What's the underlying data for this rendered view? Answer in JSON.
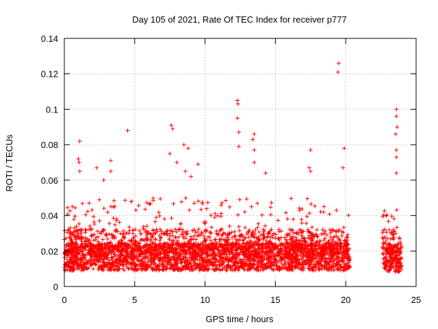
{
  "chart_data": {
    "type": "scatter",
    "title": "Day 105 of 2021, Rate Of TEC Index for receiver p777",
    "xlabel": "GPS time / hours",
    "ylabel": "ROTI / TECUs",
    "xlim": [
      0,
      25
    ],
    "ylim": [
      0,
      0.14
    ],
    "x_ticks": [
      0,
      5,
      10,
      15,
      20,
      25
    ],
    "y_ticks": [
      0,
      0.02,
      0.04,
      0.06,
      0.08,
      0.1,
      0.12,
      0.14
    ],
    "x_tick_labels": [
      "0",
      "5",
      "10",
      "15",
      "20",
      "25"
    ],
    "y_tick_labels": [
      "0",
      "0.02",
      "0.04",
      "0.06",
      "0.08",
      "0.1",
      "0.12",
      "0.14"
    ],
    "grid": true,
    "marker": "+",
    "color": "#ff0000",
    "series": [
      {
        "data_segments": [
          {
            "x_start": 0.0,
            "x_end": 20.3,
            "y_low": 0.005,
            "y_typical": 0.018,
            "y_high": 0.05
          },
          {
            "x_start": 22.6,
            "x_end": 24.0,
            "y_low": 0.004,
            "y_typical": 0.018,
            "y_high": 0.045
          }
        ],
        "outliers": [
          {
            "x": 1.1,
            "y": 0.082
          },
          {
            "x": 1.0,
            "y": 0.072
          },
          {
            "x": 1.05,
            "y": 0.07
          },
          {
            "x": 1.1,
            "y": 0.065
          },
          {
            "x": 2.3,
            "y": 0.067
          },
          {
            "x": 2.8,
            "y": 0.06
          },
          {
            "x": 3.3,
            "y": 0.071
          },
          {
            "x": 3.3,
            "y": 0.065
          },
          {
            "x": 4.5,
            "y": 0.088
          },
          {
            "x": 7.6,
            "y": 0.091
          },
          {
            "x": 7.7,
            "y": 0.089
          },
          {
            "x": 7.5,
            "y": 0.075
          },
          {
            "x": 8.0,
            "y": 0.07
          },
          {
            "x": 8.5,
            "y": 0.08
          },
          {
            "x": 8.8,
            "y": 0.078
          },
          {
            "x": 8.6,
            "y": 0.065
          },
          {
            "x": 9.0,
            "y": 0.062
          },
          {
            "x": 9.5,
            "y": 0.069
          },
          {
            "x": 12.3,
            "y": 0.105
          },
          {
            "x": 12.35,
            "y": 0.103
          },
          {
            "x": 12.3,
            "y": 0.095
          },
          {
            "x": 12.4,
            "y": 0.087
          },
          {
            "x": 12.4,
            "y": 0.079
          },
          {
            "x": 13.5,
            "y": 0.086
          },
          {
            "x": 13.4,
            "y": 0.083
          },
          {
            "x": 13.5,
            "y": 0.077
          },
          {
            "x": 13.5,
            "y": 0.07
          },
          {
            "x": 14.3,
            "y": 0.064
          },
          {
            "x": 17.5,
            "y": 0.077
          },
          {
            "x": 17.4,
            "y": 0.067
          },
          {
            "x": 17.5,
            "y": 0.065
          },
          {
            "x": 19.5,
            "y": 0.126
          },
          {
            "x": 19.45,
            "y": 0.121
          },
          {
            "x": 19.9,
            "y": 0.078
          },
          {
            "x": 19.8,
            "y": 0.067
          },
          {
            "x": 23.6,
            "y": 0.1
          },
          {
            "x": 23.6,
            "y": 0.096
          },
          {
            "x": 23.65,
            "y": 0.09
          },
          {
            "x": 23.55,
            "y": 0.086
          },
          {
            "x": 23.6,
            "y": 0.077
          },
          {
            "x": 23.6,
            "y": 0.073
          },
          {
            "x": 23.6,
            "y": 0.064
          }
        ]
      }
    ]
  }
}
